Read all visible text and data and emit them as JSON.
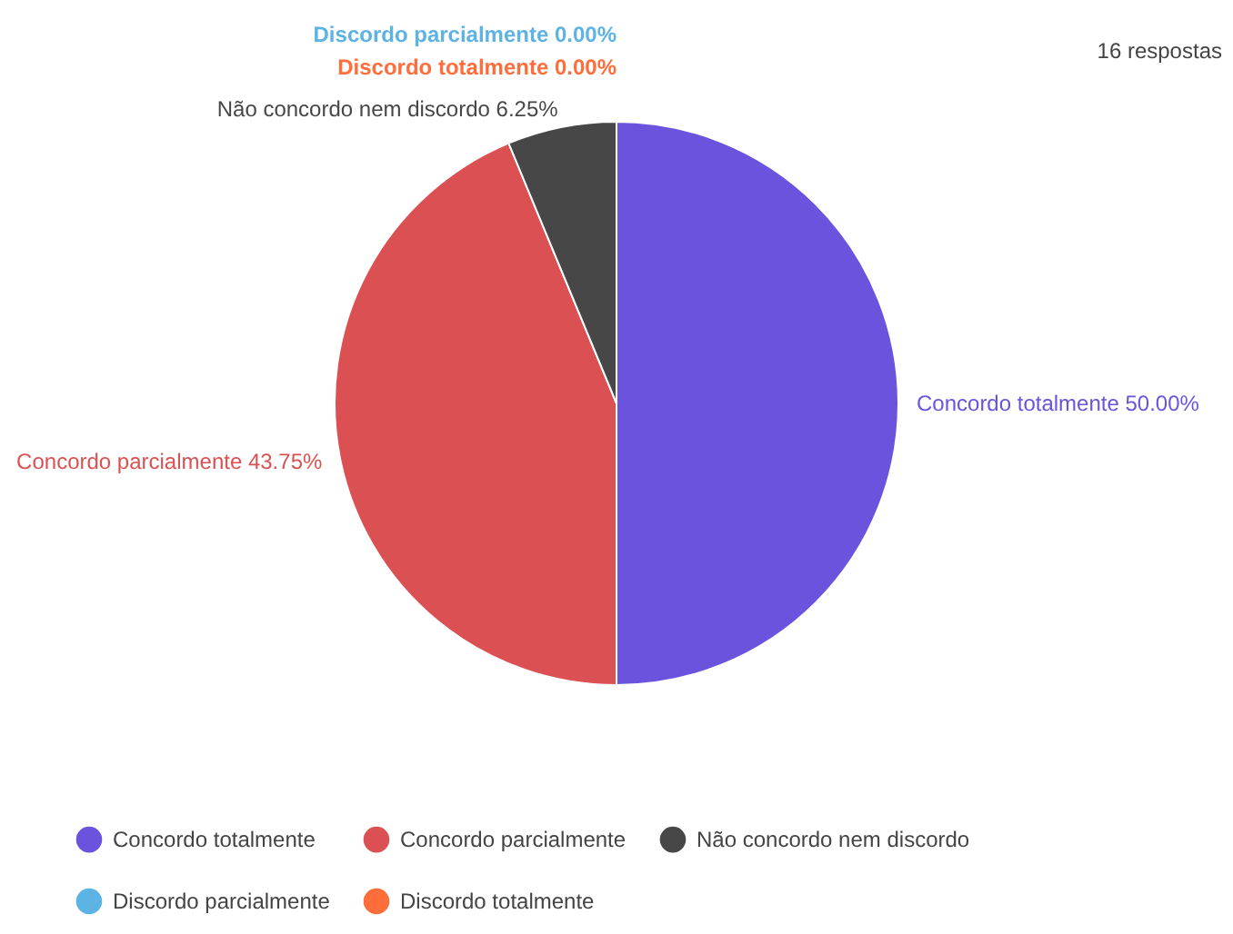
{
  "chart_data": {
    "type": "pie",
    "categories": [
      "Concordo totalmente",
      "Concordo parcialmente",
      "Não concordo nem discordo",
      "Discordo parcialmente",
      "Discordo totalmente"
    ],
    "values": [
      50,
      43.75,
      6.25,
      0,
      0
    ],
    "colors": [
      "#6c53dd",
      "#db5153",
      "#474747",
      "#5db3e4",
      "#ff6d3a"
    ],
    "value_labels": [
      "50.00%",
      "43.75%",
      "6.25%",
      "0.00%",
      "0.00%"
    ],
    "legend": "bottom",
    "annotations": [
      "16 respostas"
    ]
  }
}
